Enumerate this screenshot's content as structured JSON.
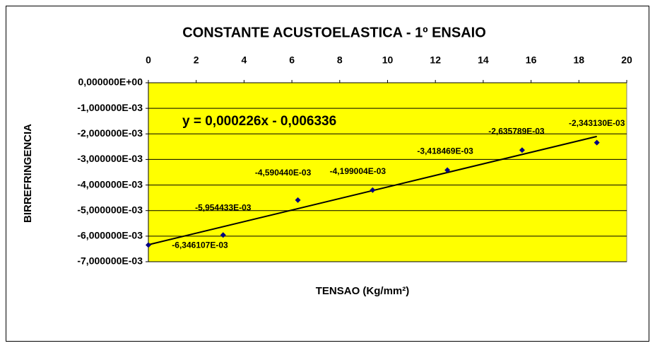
{
  "chart_data": {
    "type": "scatter",
    "title": "CONSTANTE ACUSTOELASTICA - 1º ENSAIO",
    "x_label": "TENSAO (Kg/mm²)",
    "y_label": "BIRREFRINGENCIA",
    "x": [
      0,
      3.125,
      6.25,
      9.375,
      12.5,
      15.625,
      18.75
    ],
    "values": [
      -0.006346107,
      -0.005954433,
      -0.00459044,
      -0.004199004,
      -0.003418469,
      -0.002635789,
      -0.00234313
    ],
    "value_labels": [
      "-6,346107E-03",
      "-5,954433E-03",
      "-4,590440E-03",
      "-4,199004E-03",
      "-3,418469E-03",
      "-2,635789E-03",
      "-2,343130E-03"
    ],
    "color": "#000080",
    "plot_background": "#ffff00",
    "xlim": [
      0,
      20
    ],
    "xticks": [
      0,
      2,
      4,
      6,
      8,
      10,
      12,
      14,
      16,
      18,
      20
    ],
    "ylim": [
      -0.007,
      0
    ],
    "yticks": [
      {
        "value": 0,
        "label": "0,000000E+00"
      },
      {
        "value": -0.001,
        "label": "-1,000000E-03"
      },
      {
        "value": -0.002,
        "label": "-2,000000E-03"
      },
      {
        "value": -0.003,
        "label": "-3,000000E-03"
      },
      {
        "value": -0.004,
        "label": "-4,000000E-03"
      },
      {
        "value": -0.005,
        "label": "-5,000000E-03"
      },
      {
        "value": -0.006,
        "label": "-6,000000E-03"
      },
      {
        "value": -0.007,
        "label": "-7,000000E-03"
      }
    ],
    "grid": true,
    "trendline": {
      "slope": 0.000226,
      "intercept": -0.006336,
      "label": "y = 0,000226x - 0,006336"
    }
  }
}
